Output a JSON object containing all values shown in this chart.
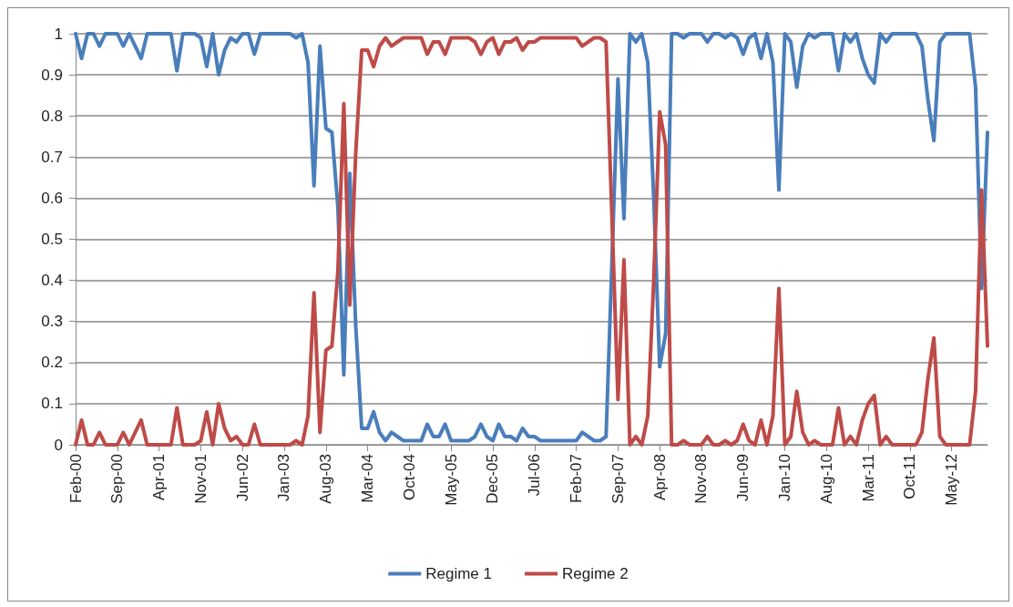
{
  "chart_data": {
    "type": "line",
    "categories": [
      "Feb-00",
      null,
      null,
      null,
      null,
      null,
      null,
      "Sep-00",
      null,
      null,
      null,
      null,
      null,
      null,
      "Apr-01",
      null,
      null,
      null,
      null,
      null,
      null,
      "Nov-01",
      null,
      null,
      null,
      null,
      null,
      null,
      "Jun-02",
      null,
      null,
      null,
      null,
      null,
      null,
      "Jan-03",
      null,
      null,
      null,
      null,
      null,
      null,
      "Aug-03",
      null,
      null,
      null,
      null,
      null,
      null,
      "Mar-04",
      null,
      null,
      null,
      null,
      null,
      null,
      "Oct-04",
      null,
      null,
      null,
      null,
      null,
      null,
      "May-05",
      null,
      null,
      null,
      null,
      null,
      null,
      "Dec-05",
      null,
      null,
      null,
      null,
      null,
      null,
      "Jul-06",
      null,
      null,
      null,
      null,
      null,
      null,
      "Feb-07",
      null,
      null,
      null,
      null,
      null,
      null,
      "Sep-07",
      null,
      null,
      null,
      null,
      null,
      null,
      "Apr-08",
      null,
      null,
      null,
      null,
      null,
      null,
      "Nov-08",
      null,
      null,
      null,
      null,
      null,
      null,
      "Jun-09",
      null,
      null,
      null,
      null,
      null,
      null,
      "Jan-10",
      null,
      null,
      null,
      null,
      null,
      null,
      "Aug-10",
      null,
      null,
      null,
      null,
      null,
      null,
      "Mar-11",
      null,
      null,
      null,
      null,
      null,
      null,
      "Oct-11",
      null,
      null,
      null,
      null,
      null,
      null,
      "May-12",
      null,
      null,
      null,
      null,
      null,
      null
    ],
    "series": [
      {
        "name": "Regime 1",
        "color": "#4a7ebb",
        "values": [
          1.0,
          0.94,
          1.0,
          1.0,
          0.97,
          1.0,
          1.0,
          1.0,
          0.97,
          1.0,
          0.97,
          0.94,
          1.0,
          1.0,
          1.0,
          1.0,
          1.0,
          0.91,
          1.0,
          1.0,
          1.0,
          0.99,
          0.92,
          1.0,
          0.9,
          0.96,
          0.99,
          0.98,
          1.0,
          1.0,
          0.95,
          1.0,
          1.0,
          1.0,
          1.0,
          1.0,
          1.0,
          0.99,
          1.0,
          0.93,
          0.63,
          0.97,
          0.77,
          0.76,
          0.58,
          0.17,
          0.66,
          0.29,
          0.04,
          0.04,
          0.08,
          0.03,
          0.01,
          0.03,
          0.02,
          0.01,
          0.01,
          0.01,
          0.01,
          0.05,
          0.02,
          0.02,
          0.05,
          0.01,
          0.01,
          0.01,
          0.01,
          0.02,
          0.05,
          0.02,
          0.01,
          0.05,
          0.02,
          0.02,
          0.01,
          0.04,
          0.02,
          0.02,
          0.01,
          0.01,
          0.01,
          0.01,
          0.01,
          0.01,
          0.01,
          0.03,
          0.02,
          0.01,
          0.01,
          0.02,
          0.45,
          0.89,
          0.55,
          1.0,
          0.98,
          1.0,
          0.93,
          0.6,
          0.19,
          0.27,
          1.0,
          1.0,
          0.99,
          1.0,
          1.0,
          1.0,
          0.98,
          1.0,
          1.0,
          0.99,
          1.0,
          0.99,
          0.95,
          0.99,
          1.0,
          0.94,
          1.0,
          0.93,
          0.62,
          1.0,
          0.98,
          0.87,
          0.97,
          1.0,
          0.99,
          1.0,
          1.0,
          1.0,
          0.91,
          1.0,
          0.98,
          1.0,
          0.94,
          0.9,
          0.88,
          1.0,
          0.98,
          1.0,
          1.0,
          1.0,
          1.0,
          1.0,
          0.97,
          0.84,
          0.74,
          0.98,
          1.0,
          1.0,
          1.0,
          1.0,
          1.0,
          0.87,
          0.38,
          0.76
        ]
      },
      {
        "name": "Regime 2",
        "color": "#be4b48",
        "values": [
          0.0,
          0.06,
          0.0,
          0.0,
          0.03,
          0.0,
          0.0,
          0.0,
          0.03,
          0.0,
          0.03,
          0.06,
          0.0,
          0.0,
          0.0,
          0.0,
          0.0,
          0.09,
          0.0,
          0.0,
          0.0,
          0.01,
          0.08,
          0.0,
          0.1,
          0.04,
          0.01,
          0.02,
          0.0,
          0.0,
          0.05,
          0.0,
          0.0,
          0.0,
          0.0,
          0.0,
          0.0,
          0.01,
          0.0,
          0.07,
          0.37,
          0.03,
          0.23,
          0.24,
          0.42,
          0.83,
          0.34,
          0.71,
          0.96,
          0.96,
          0.92,
          0.97,
          0.99,
          0.97,
          0.98,
          0.99,
          0.99,
          0.99,
          0.99,
          0.95,
          0.98,
          0.98,
          0.95,
          0.99,
          0.99,
          0.99,
          0.99,
          0.98,
          0.95,
          0.98,
          0.99,
          0.95,
          0.98,
          0.98,
          0.99,
          0.96,
          0.98,
          0.98,
          0.99,
          0.99,
          0.99,
          0.99,
          0.99,
          0.99,
          0.99,
          0.97,
          0.98,
          0.99,
          0.99,
          0.98,
          0.55,
          0.11,
          0.45,
          0.0,
          0.02,
          0.0,
          0.07,
          0.4,
          0.81,
          0.73,
          0.0,
          0.0,
          0.01,
          0.0,
          0.0,
          0.0,
          0.02,
          0.0,
          0.0,
          0.01,
          0.0,
          0.01,
          0.05,
          0.01,
          0.0,
          0.06,
          0.0,
          0.07,
          0.38,
          0.0,
          0.02,
          0.13,
          0.03,
          0.0,
          0.01,
          0.0,
          0.0,
          0.0,
          0.09,
          0.0,
          0.02,
          0.0,
          0.06,
          0.1,
          0.12,
          0.0,
          0.02,
          0.0,
          0.0,
          0.0,
          0.0,
          0.0,
          0.03,
          0.16,
          0.26,
          0.02,
          0.0,
          0.0,
          0.0,
          0.0,
          0.0,
          0.13,
          0.62,
          0.24
        ]
      }
    ],
    "ylim": [
      0,
      1
    ],
    "yticks": [
      0,
      0.1,
      0.2,
      0.3,
      0.4,
      0.5,
      0.6,
      0.7,
      0.8,
      0.9,
      1
    ],
    "grid": "y",
    "legend": "bottom",
    "marker": "none",
    "line_style": "solid"
  }
}
